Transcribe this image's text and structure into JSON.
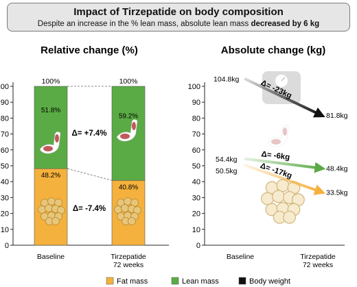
{
  "header": {
    "title": "Impact of Tirzepatide on body composition",
    "subtitle_prefix": "Despite an increase in the % lean mass, absolute lean mass ",
    "subtitle_emphasis": "decreased by 6 kg"
  },
  "colors": {
    "fat": "#f5b13d",
    "lean": "#5aab45",
    "weight": "#111111",
    "banner": "#e6e6e6"
  },
  "legend": [
    {
      "label": "Fat mass",
      "color": "#f5b13d"
    },
    {
      "label": "Lean mass",
      "color": "#5aab45"
    },
    {
      "label": "Body weight",
      "color": "#111111"
    }
  ],
  "icons": [
    "muscle-arm-icon",
    "fat-cells-icon",
    "weighing-scale-icon"
  ],
  "chart_data": [
    {
      "type": "bar",
      "title": "Relative change (%)",
      "categories": [
        "Baseline",
        "Tirzepatide\n72 weeks"
      ],
      "category_lines": [
        [
          "Baseline"
        ],
        [
          "Tirzepatide",
          "72 weeks"
        ]
      ],
      "ylim": [
        0,
        100
      ],
      "yticks": [
        0,
        10,
        20,
        30,
        40,
        50,
        60,
        70,
        80,
        90,
        100
      ],
      "stacked": true,
      "series": [
        {
          "name": "Fat mass",
          "values": [
            48.2,
            40.8
          ],
          "labels": [
            "48.2%",
            "40.8%"
          ]
        },
        {
          "name": "Lean mass",
          "values": [
            51.8,
            59.2
          ],
          "labels": [
            "51.8%",
            "59.2%"
          ]
        }
      ],
      "total_labels": [
        "100%",
        "100%"
      ],
      "annotations": [
        "Δ= +7.4%",
        "Δ= -7.4%"
      ]
    },
    {
      "type": "line",
      "title": "Absolute change (kg)",
      "x": [
        "Baseline",
        "Tirzepatide\n72 weeks"
      ],
      "category_lines": [
        [
          "Baseline"
        ],
        [
          "Tirzepatide",
          "72 weeks"
        ]
      ],
      "ylim": [
        0,
        100
      ],
      "yticks": [
        0,
        10,
        20,
        30,
        40,
        50,
        60,
        70,
        80,
        90,
        100
      ],
      "series": [
        {
          "name": "Body weight",
          "values": [
            104.8,
            81.8
          ],
          "labels": [
            "104.8kg",
            "81.8kg"
          ],
          "delta": "Δ= -23kg"
        },
        {
          "name": "Lean mass",
          "values": [
            54.4,
            48.4
          ],
          "labels": [
            "54.4kg",
            "48.4kg"
          ],
          "delta": "Δ= -6kg"
        },
        {
          "name": "Fat mass",
          "values": [
            50.5,
            33.5
          ],
          "labels": [
            "50.5kg",
            "33.5kg"
          ],
          "delta": "Δ= -17kg"
        }
      ]
    }
  ]
}
